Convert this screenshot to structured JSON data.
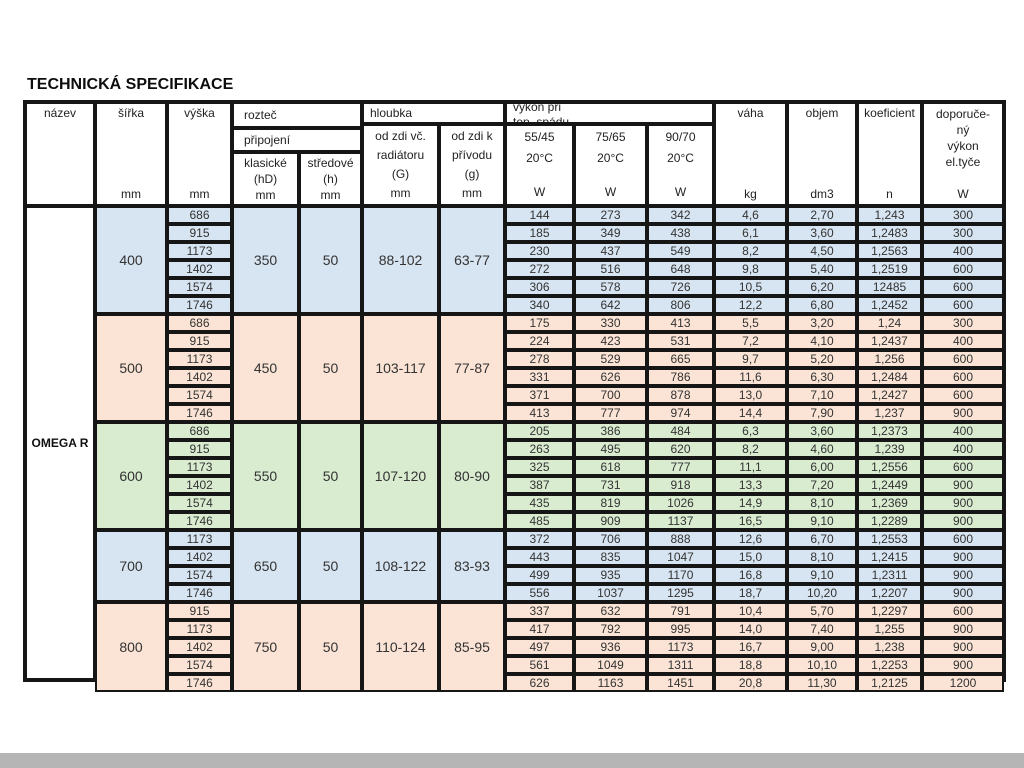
{
  "title": "TECHNICKÁ SPECIFIKACE",
  "product_name": "OMEGA R",
  "colors": {
    "blue": "#d7e4f1",
    "peach": "#fbe4d5",
    "green": "#d9ecd0",
    "border": "#161616",
    "bottom_bar": "#b5b5b5"
  },
  "header": {
    "nazev": "název",
    "sirka": "šířka",
    "vyska": "výška",
    "roztec": "rozteč",
    "pripojeni": "připojení",
    "klasicke_l1": "klasické",
    "klasicke_l2": "(hD)",
    "stredove_l1": "středové",
    "stredove_l2": "(h)",
    "hloubka": "hloubka",
    "odzdi_g_l1": "od zdi vč.",
    "odzdi_g_l2": "radiátoru",
    "odzdi_g_l3": "(G)",
    "odzdi_k_l1": "od zdi k",
    "odzdi_k_l2": "přívodu",
    "odzdi_k_l3": "(g)",
    "vykon_l1": "výkon při",
    "vykon_l2": "tep. spádu",
    "t5545": "55/45",
    "t7565": "75/65",
    "t9070": "90/70",
    "temp": "20°C",
    "vaha": "váha",
    "objem": "objem",
    "koeficient": "koeficient",
    "dopor_l1": "doporuče-",
    "dopor_l2": "ný",
    "dopor_l3": "výkon",
    "dopor_l4": "el.tyče",
    "unit_mm": "mm",
    "unit_w": "W",
    "unit_kg": "kg",
    "unit_dm3": "dm3",
    "unit_n": "n"
  },
  "groups": [
    {
      "width": "400",
      "color": "blue",
      "klasicke": "350",
      "stredove": "50",
      "hloubka_g": "88-102",
      "hloubka_g2": "63-77",
      "rows": [
        {
          "vyska": "686",
          "w5545": "144",
          "w7565": "273",
          "w9070": "342",
          "vaha": "4,6",
          "objem": "2,70",
          "koef": "1,243",
          "dopor": "300"
        },
        {
          "vyska": "915",
          "w5545": "185",
          "w7565": "349",
          "w9070": "438",
          "vaha": "6,1",
          "objem": "3,60",
          "koef": "1,2483",
          "dopor": "300"
        },
        {
          "vyska": "1173",
          "w5545": "230",
          "w7565": "437",
          "w9070": "549",
          "vaha": "8,2",
          "objem": "4,50",
          "koef": "1,2563",
          "dopor": "400"
        },
        {
          "vyska": "1402",
          "w5545": "272",
          "w7565": "516",
          "w9070": "648",
          "vaha": "9,8",
          "objem": "5,40",
          "koef": "1,2519",
          "dopor": "600"
        },
        {
          "vyska": "1574",
          "w5545": "306",
          "w7565": "578",
          "w9070": "726",
          "vaha": "10,5",
          "objem": "6,20",
          "koef": "12485",
          "dopor": "600"
        },
        {
          "vyska": "1746",
          "w5545": "340",
          "w7565": "642",
          "w9070": "806",
          "vaha": "12,2",
          "objem": "6,80",
          "koef": "1,2452",
          "dopor": "600"
        }
      ]
    },
    {
      "width": "500",
      "color": "peach",
      "klasicke": "450",
      "stredove": "50",
      "hloubka_g": "103-117",
      "hloubka_g2": "77-87",
      "rows": [
        {
          "vyska": "686",
          "w5545": "175",
          "w7565": "330",
          "w9070": "413",
          "vaha": "5,5",
          "objem": "3,20",
          "koef": "1,24",
          "dopor": "300"
        },
        {
          "vyska": "915",
          "w5545": "224",
          "w7565": "423",
          "w9070": "531",
          "vaha": "7,2",
          "objem": "4,10",
          "koef": "1,2437",
          "dopor": "400"
        },
        {
          "vyska": "1173",
          "w5545": "278",
          "w7565": "529",
          "w9070": "665",
          "vaha": "9,7",
          "objem": "5,20",
          "koef": "1,256",
          "dopor": "600"
        },
        {
          "vyska": "1402",
          "w5545": "331",
          "w7565": "626",
          "w9070": "786",
          "vaha": "11,6",
          "objem": "6,30",
          "koef": "1,2484",
          "dopor": "600"
        },
        {
          "vyska": "1574",
          "w5545": "371",
          "w7565": "700",
          "w9070": "878",
          "vaha": "13,0",
          "objem": "7,10",
          "koef": "1,2427",
          "dopor": "600"
        },
        {
          "vyska": "1746",
          "w5545": "413",
          "w7565": "777",
          "w9070": "974",
          "vaha": "14,4",
          "objem": "7,90",
          "koef": "1,237",
          "dopor": "900"
        }
      ]
    },
    {
      "width": "600",
      "color": "green",
      "klasicke": "550",
      "stredove": "50",
      "hloubka_g": "107-120",
      "hloubka_g2": "80-90",
      "rows": [
        {
          "vyska": "686",
          "w5545": "205",
          "w7565": "386",
          "w9070": "484",
          "vaha": "6,3",
          "objem": "3,60",
          "koef": "1,2373",
          "dopor": "400"
        },
        {
          "vyska": "915",
          "w5545": "263",
          "w7565": "495",
          "w9070": "620",
          "vaha": "8,2",
          "objem": "4,60",
          "koef": "1,239",
          "dopor": "400"
        },
        {
          "vyska": "1173",
          "w5545": "325",
          "w7565": "618",
          "w9070": "777",
          "vaha": "11,1",
          "objem": "6,00",
          "koef": "1,2556",
          "dopor": "600"
        },
        {
          "vyska": "1402",
          "w5545": "387",
          "w7565": "731",
          "w9070": "918",
          "vaha": "13,3",
          "objem": "7,20",
          "koef": "1,2449",
          "dopor": "900"
        },
        {
          "vyska": "1574",
          "w5545": "435",
          "w7565": "819",
          "w9070": "1026",
          "vaha": "14,9",
          "objem": "8,10",
          "koef": "1,2369",
          "dopor": "900"
        },
        {
          "vyska": "1746",
          "w5545": "485",
          "w7565": "909",
          "w9070": "1137",
          "vaha": "16,5",
          "objem": "9,10",
          "koef": "1,2289",
          "dopor": "900"
        }
      ]
    },
    {
      "width": "700",
      "color": "blue",
      "klasicke": "650",
      "stredove": "50",
      "hloubka_g": "108-122",
      "hloubka_g2": "83-93",
      "rows": [
        {
          "vyska": "1173",
          "w5545": "372",
          "w7565": "706",
          "w9070": "888",
          "vaha": "12,6",
          "objem": "6,70",
          "koef": "1,2553",
          "dopor": "600"
        },
        {
          "vyska": "1402",
          "w5545": "443",
          "w7565": "835",
          "w9070": "1047",
          "vaha": "15,0",
          "objem": "8,10",
          "koef": "1,2415",
          "dopor": "900"
        },
        {
          "vyska": "1574",
          "w5545": "499",
          "w7565": "935",
          "w9070": "1170",
          "vaha": "16,8",
          "objem": "9,10",
          "koef": "1,2311",
          "dopor": "900"
        },
        {
          "vyska": "1746",
          "w5545": "556",
          "w7565": "1037",
          "w9070": "1295",
          "vaha": "18,7",
          "objem": "10,20",
          "koef": "1,2207",
          "dopor": "900"
        }
      ]
    },
    {
      "width": "800",
      "color": "peach",
      "klasicke": "750",
      "stredove": "50",
      "hloubka_g": "110-124",
      "hloubka_g2": "85-95",
      "rows": [
        {
          "vyska": "915",
          "w5545": "337",
          "w7565": "632",
          "w9070": "791",
          "vaha": "10,4",
          "objem": "5,70",
          "koef": "1,2297",
          "dopor": "600"
        },
        {
          "vyska": "1173",
          "w5545": "417",
          "w7565": "792",
          "w9070": "995",
          "vaha": "14,0",
          "objem": "7,40",
          "koef": "1,255",
          "dopor": "900"
        },
        {
          "vyska": "1402",
          "w5545": "497",
          "w7565": "936",
          "w9070": "1173",
          "vaha": "16,7",
          "objem": "9,00",
          "koef": "1,238",
          "dopor": "900"
        },
        {
          "vyska": "1574",
          "w5545": "561",
          "w7565": "1049",
          "w9070": "1311",
          "vaha": "18,8",
          "objem": "10,10",
          "koef": "1,2253",
          "dopor": "900"
        },
        {
          "vyska": "1746",
          "w5545": "626",
          "w7565": "1163",
          "w9070": "1451",
          "vaha": "20,8",
          "objem": "11,30",
          "koef": "1,2125",
          "dopor": "1200"
        }
      ]
    }
  ]
}
